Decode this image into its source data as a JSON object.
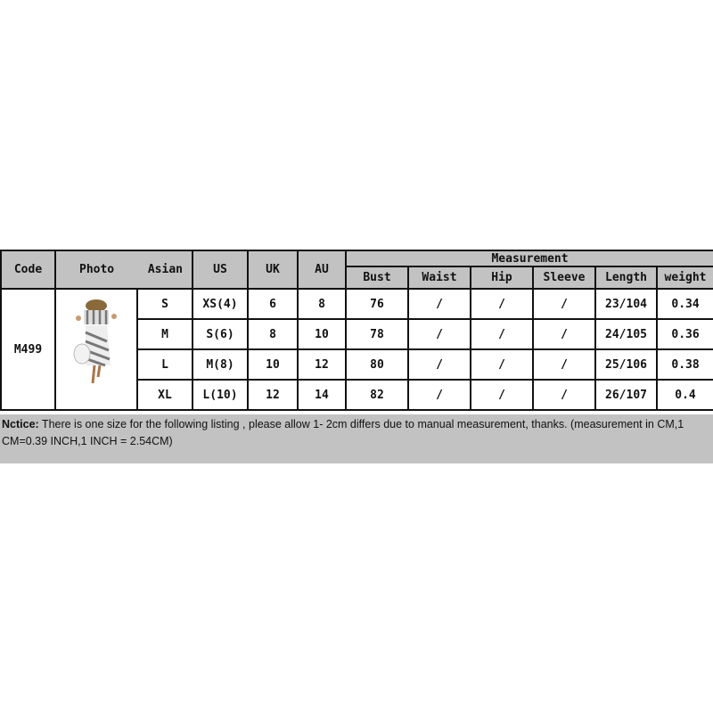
{
  "headers": {
    "code": "Code",
    "photo": "Photo",
    "asian": "Asian",
    "us": "US",
    "uk": "UK",
    "au": "AU",
    "measurement": "Measurement",
    "bust": "Bust",
    "waist": "Waist",
    "hip": "Hip",
    "sleeve": "Sleeve",
    "length": "Length",
    "weight": "weight"
  },
  "code": "M499",
  "photo_icon": "product-photo-striped-dress",
  "rows": [
    {
      "asian": "S",
      "us": "XS(4)",
      "uk": "6",
      "au": "8",
      "bust": "76",
      "waist": "/",
      "hip": "/",
      "sleeve": "/",
      "length": "23/104",
      "weight": "0.34"
    },
    {
      "asian": "M",
      "us": "S(6)",
      "uk": "8",
      "au": "10",
      "bust": "78",
      "waist": "/",
      "hip": "/",
      "sleeve": "/",
      "length": "24/105",
      "weight": "0.36"
    },
    {
      "asian": "L",
      "us": "M(8)",
      "uk": "10",
      "au": "12",
      "bust": "80",
      "waist": "/",
      "hip": "/",
      "sleeve": "/",
      "length": "25/106",
      "weight": "0.38"
    },
    {
      "asian": "XL",
      "us": "L(10)",
      "uk": "12",
      "au": "14",
      "bust": "82",
      "waist": "/",
      "hip": "/",
      "sleeve": "/",
      "length": "26/107",
      "weight": "0.4"
    }
  ],
  "notice": {
    "label": "Nctice:",
    "text": " There is one size for the following listing , please allow 1- 2cm differs due to manual measurement, thanks. (measurement in CM,1 CM=0.39 INCH,1 INCH = 2.54CM)"
  },
  "colors": {
    "header_bg": "#c2c2c2",
    "border": "#111111"
  }
}
